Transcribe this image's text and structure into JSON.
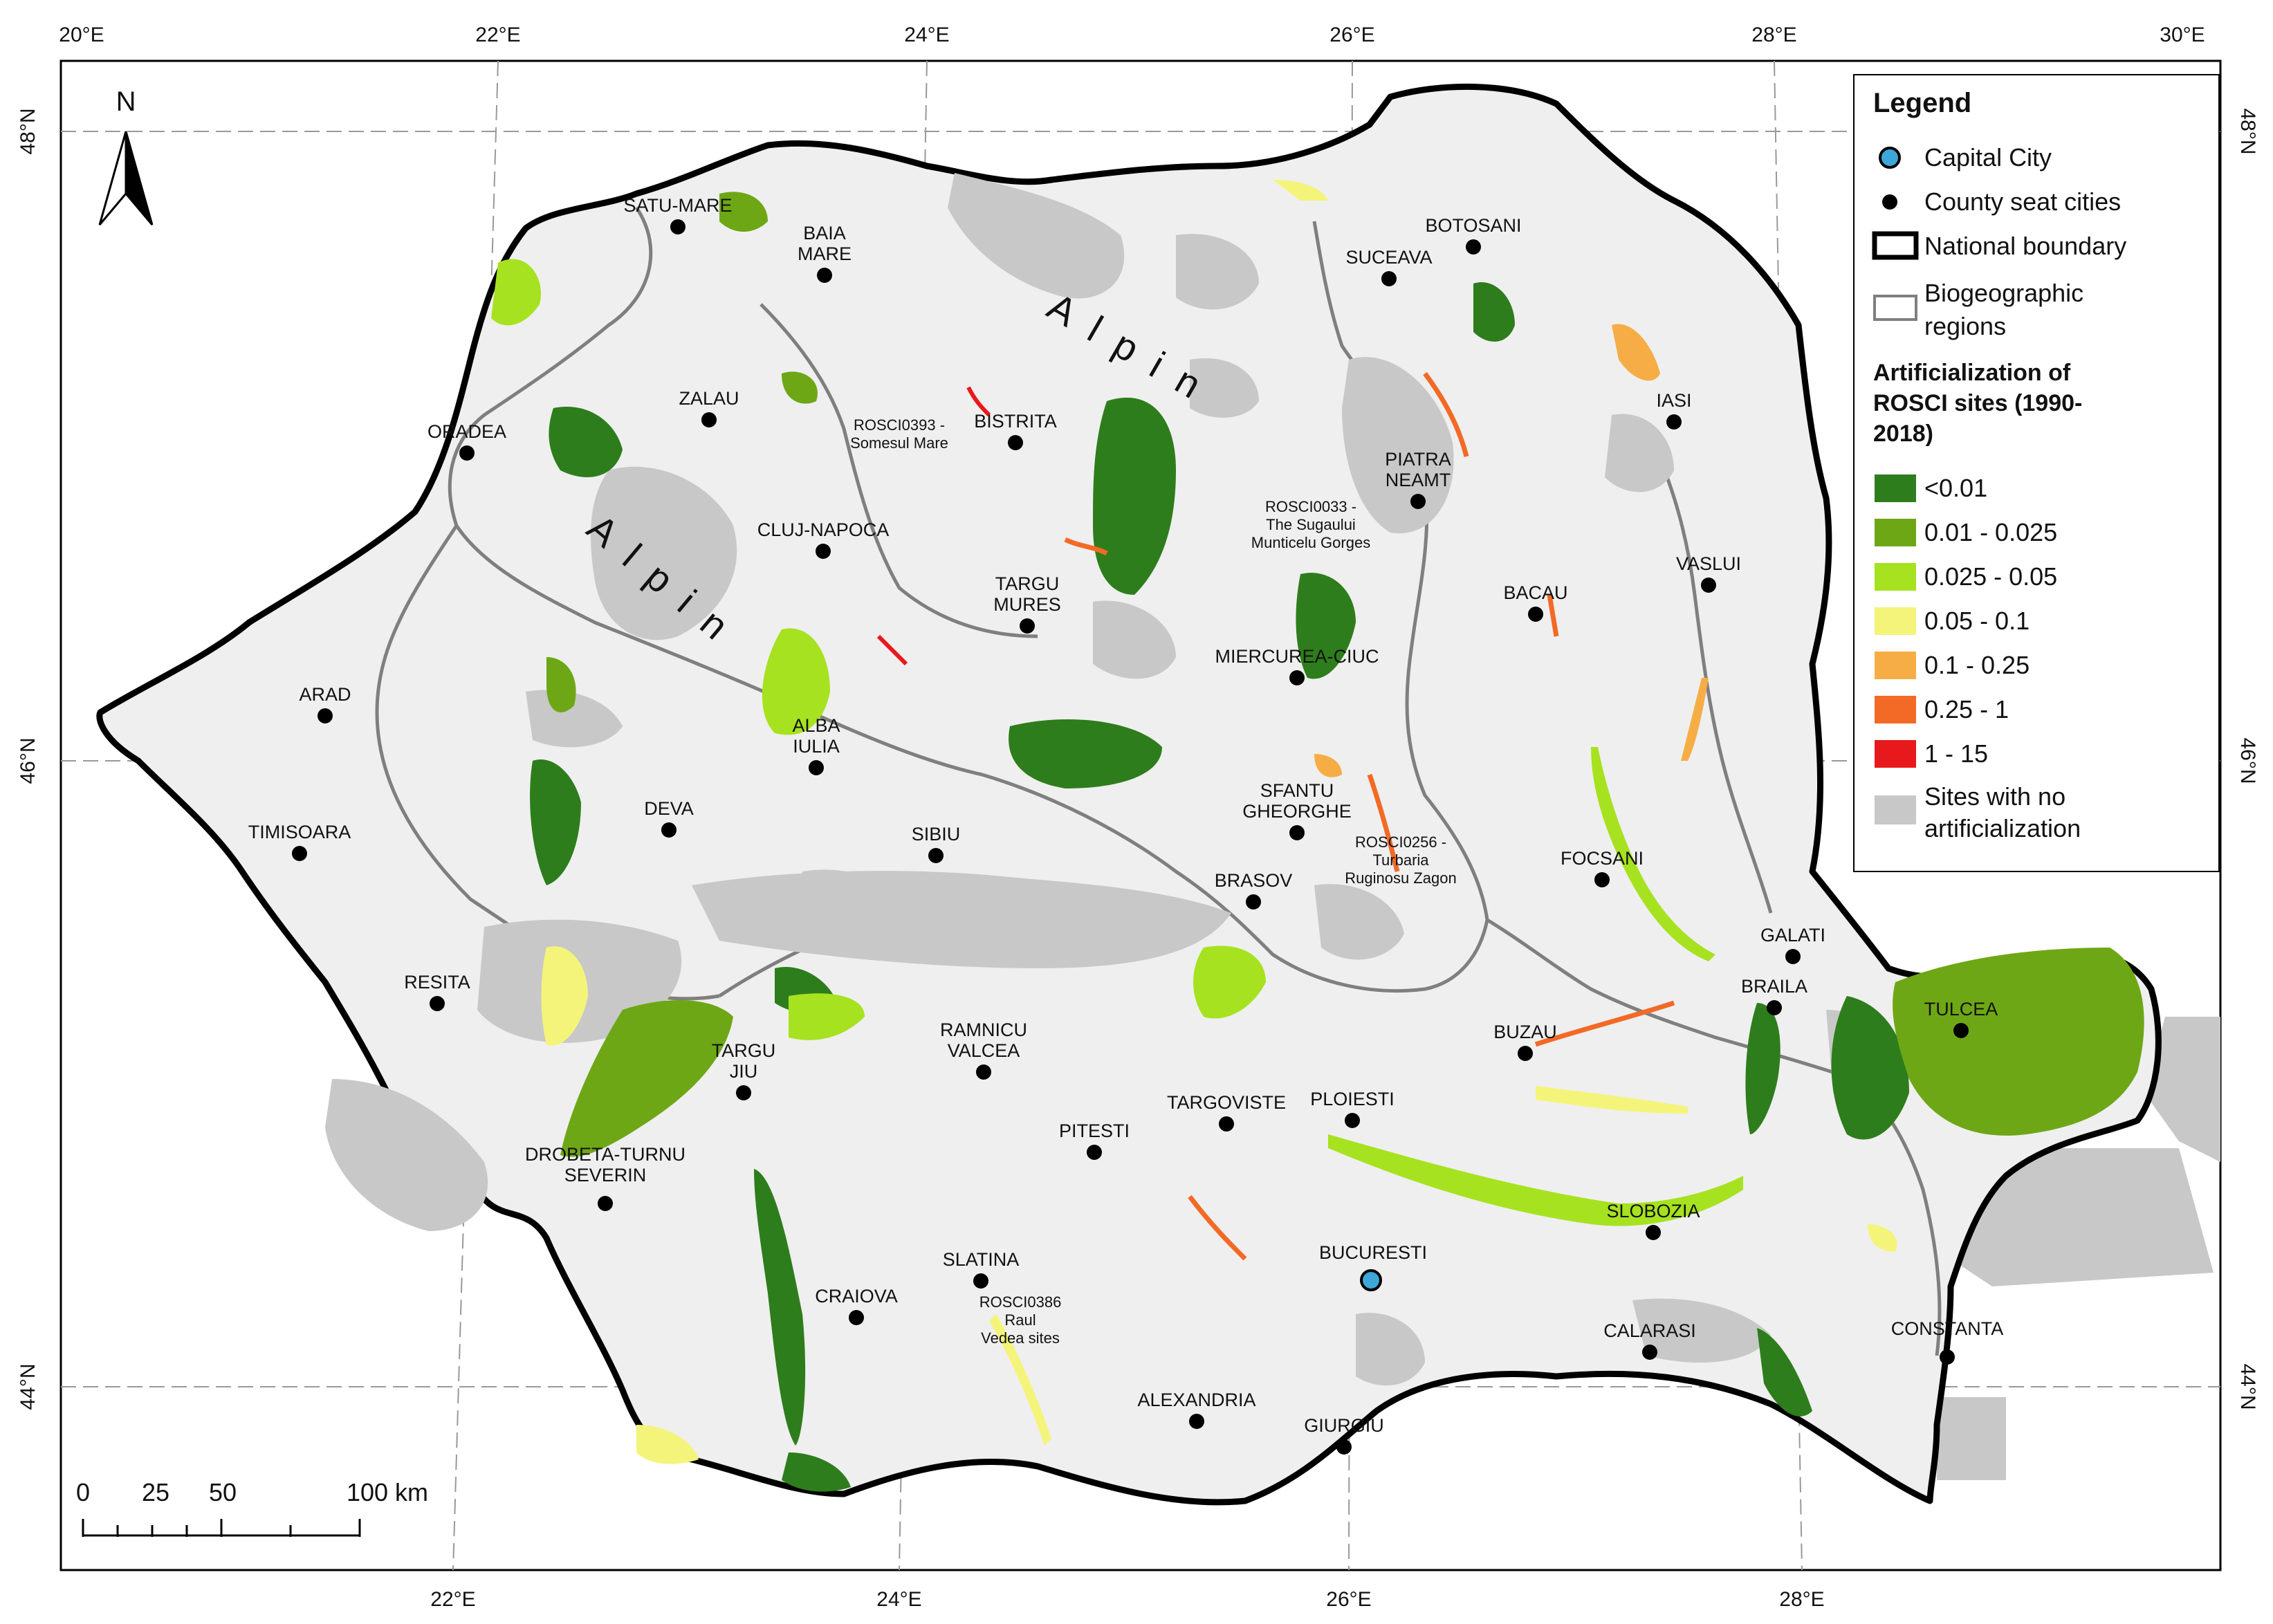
{
  "map": {
    "top_ticks": [
      "20°E",
      "22°E",
      "24°E",
      "26°E",
      "28°E",
      "30°E"
    ],
    "bottom_ticks": [
      "22°E",
      "24°E",
      "26°E",
      "28°E"
    ],
    "left_ticks": [
      "48°N",
      "46°N",
      "44°N"
    ],
    "right_ticks": [
      "48°N",
      "46°N",
      "44°N"
    ],
    "north_label": "N",
    "scale_labels": [
      "0",
      "25",
      "50",
      "100 km"
    ],
    "region_labels": [
      {
        "text": "Alpin",
        "id": "alpin-north"
      },
      {
        "text": "Alpin",
        "id": "alpin-west"
      }
    ],
    "capital": {
      "name": "BUCURESTI"
    },
    "cities": [
      "SATU-MARE",
      "BAIA MARE",
      "ZALAU",
      "ORADEA",
      "BISTRITA",
      "CLUJ-NAPOCA",
      "TARGU MURES",
      "ALBA IULIA",
      "ARAD",
      "DEVA",
      "TIMISOARA",
      "SIBIU",
      "RESITA",
      "TARGU JIU",
      "RAMNICU VALCEA",
      "DROBETA-TURNU SEVERIN",
      "PITESTI",
      "SLATINA",
      "CRAIOVA",
      "ALEXANDRIA",
      "GIURGIU",
      "TARGOVISTE",
      "PLOIESTI",
      "BRASOV",
      "SFANTU GHEORGHE",
      "MIERCUREA-CIUC",
      "SUCEAVA",
      "BOTOSANI",
      "PIATRA NEAMT",
      "IASI",
      "BACAU",
      "VASLUI",
      "FOCSANI",
      "GALATI",
      "BRAILA",
      "TULCEA",
      "BUZAU",
      "SLOBOZIA",
      "CALARASI",
      "CONSTANTA"
    ],
    "site_labels": [
      "ROSCI0393 - Somesul Mare",
      "ROSCI0033 - The Sugaului Munticelu Gorges",
      "ROSCI0256 - Turbaria Ruginosu Zagon",
      "ROSCI0386 Raul Vedea sites"
    ]
  },
  "legend": {
    "title": "Legend",
    "capital_label": "Capital City",
    "seat_label": "County seat cities",
    "boundary_label": "National boundary",
    "regions_label": "Biogeographic regions",
    "artif_title": "Artificialization of ROSCI sites (1990-2018)",
    "classes": [
      {
        "label": "<0.01",
        "color": "#2e7d1c"
      },
      {
        "label": "0.01 - 0.025",
        "color": "#6ea716"
      },
      {
        "label": "0.025 - 0.05",
        "color": "#a6e21f"
      },
      {
        "label": "0.05 - 0.1",
        "color": "#f4f47a"
      },
      {
        "label": "0.1 - 0.25",
        "color": "#f7ad45"
      },
      {
        "label": "0.25 - 1",
        "color": "#f26a25"
      },
      {
        "label": "1 - 15",
        "color": "#e8191c"
      }
    ],
    "none_label": "Sites with no artificialization",
    "none_color": "#c8c8c8"
  }
}
